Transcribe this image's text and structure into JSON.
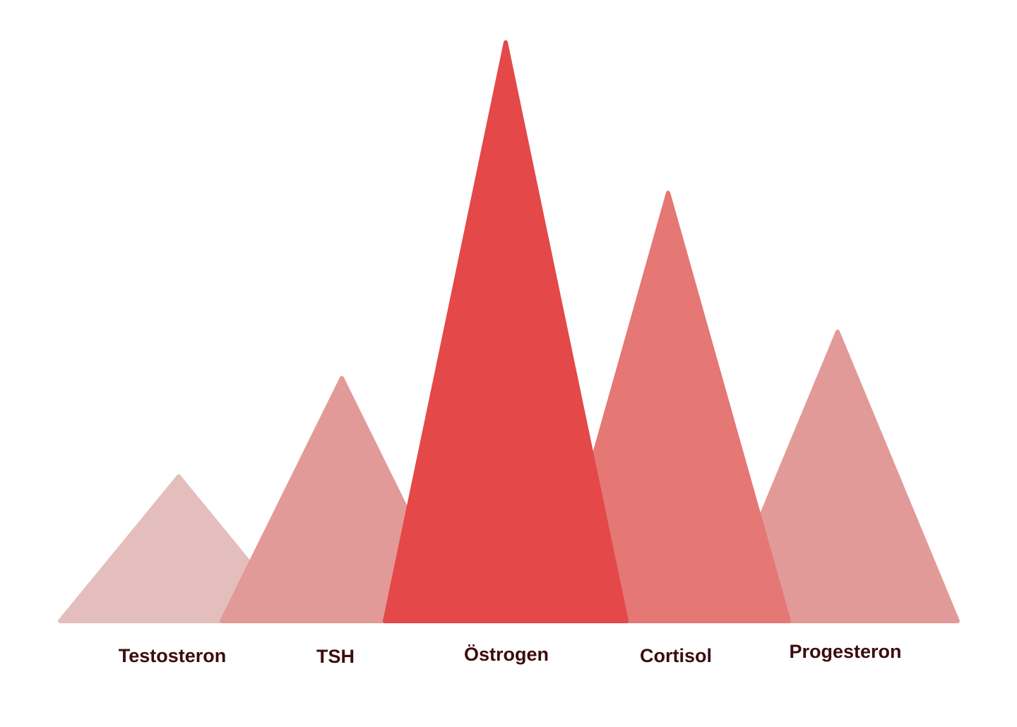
{
  "chart_data": {
    "type": "bar",
    "style": "triangle-peaks",
    "title": "",
    "xlabel": "",
    "ylabel": "",
    "categories": [
      "Testosteron",
      "TSH",
      "Östrogen",
      "Cortisol",
      "Progesteron"
    ],
    "values": [
      25,
      42,
      100,
      74,
      50
    ],
    "ylim": [
      0,
      100
    ],
    "grid": false,
    "colors": [
      "#e4bdbd",
      "#e29a98",
      "#e44848",
      "#e57775",
      "#e29a98"
    ],
    "label_color": "#3d0c0e"
  }
}
